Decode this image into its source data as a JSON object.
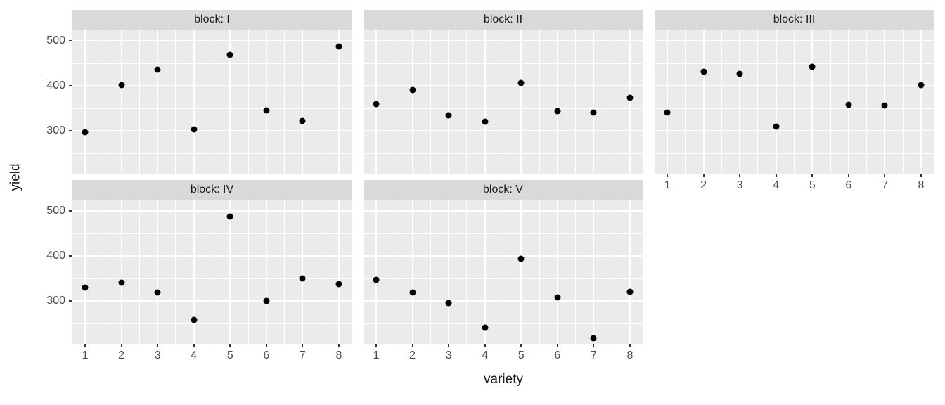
{
  "chart_data": {
    "type": "scatter",
    "title": "",
    "xlabel": "variety",
    "ylabel": "yield",
    "facet_var": "block",
    "x_ticks": [
      1,
      2,
      3,
      4,
      5,
      6,
      7,
      8
    ],
    "x_minor": [
      1.5,
      2.5,
      3.5,
      4.5,
      5.5,
      6.5,
      7.5
    ],
    "y_ticks": [
      500,
      400,
      300
    ],
    "y_minor": [
      450,
      350,
      250
    ],
    "xlim": [
      0.65,
      8.35
    ],
    "ylim": [
      205,
      525
    ],
    "grid": "on",
    "legend": "none",
    "facets": [
      {
        "label": "block: I",
        "x": [
          1,
          2,
          3,
          4,
          5,
          6,
          7,
          8
        ],
        "y": [
          297,
          402,
          436,
          303,
          469,
          345,
          322,
          487
        ]
      },
      {
        "label": "block: II",
        "x": [
          1,
          2,
          3,
          4,
          5,
          6,
          7,
          8
        ],
        "y": [
          359,
          391,
          334,
          320,
          406,
          344,
          341,
          373
        ]
      },
      {
        "label": "block: III",
        "x": [
          1,
          2,
          3,
          4,
          5,
          6,
          7,
          8
        ],
        "y": [
          341,
          431,
          427,
          309,
          442,
          358,
          356,
          402
        ]
      },
      {
        "label": "block: IV",
        "x": [
          1,
          2,
          3,
          4,
          5,
          6,
          7,
          8
        ],
        "y": [
          330,
          341,
          319,
          258,
          487,
          300,
          350,
          338
        ]
      },
      {
        "label": "block: V",
        "x": [
          1,
          2,
          3,
          4,
          5,
          6,
          7,
          8
        ],
        "y": [
          347,
          319,
          295,
          241,
          394,
          308,
          218,
          320
        ]
      }
    ],
    "colors": {
      "panel_bg": "#EBEBEB",
      "strip_bg": "#D9D9D9",
      "grid": "#FFFFFF",
      "point": "#000000",
      "tick_text": "#4D4D4D",
      "title_text": "#1A1A1A",
      "tick_mark": "#333333"
    }
  }
}
